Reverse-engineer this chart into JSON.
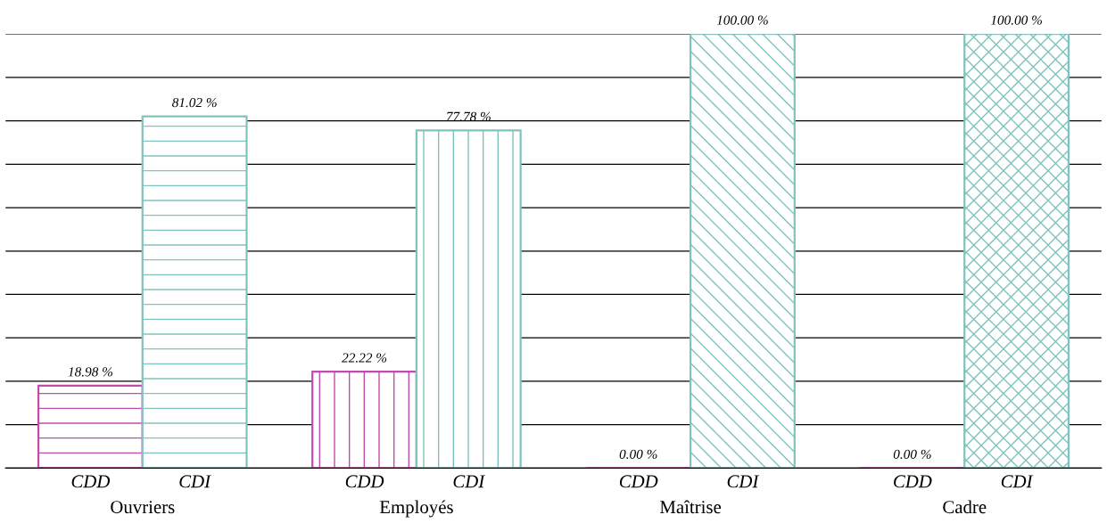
{
  "chart_data": {
    "type": "bar",
    "categories": [
      "Ouvriers",
      "Employés",
      "Maîtrise",
      "Cadre"
    ],
    "series": [
      {
        "name": "CDD",
        "color": "#c04cb0",
        "values": [
          18.98,
          22.22,
          0.0,
          0.0
        ],
        "value_labels": [
          "18.98 %",
          "22.22 %",
          "0.00 %",
          "0.00 %"
        ]
      },
      {
        "name": "CDI",
        "color": "#7fc4bc",
        "values": [
          81.02,
          77.78,
          100.0,
          100.0
        ],
        "value_labels": [
          "81.02 %",
          "77.78 %",
          "100.00 %",
          "100.00 %"
        ]
      }
    ],
    "ylim": [
      0,
      100
    ],
    "yticks": [
      {
        "value": 0,
        "label": null
      },
      {
        "value": 10,
        "label": null
      },
      {
        "value": 20,
        "label": null
      },
      {
        "value": 30,
        "label": null
      },
      {
        "value": 40,
        "label": null
      },
      {
        "value": 50,
        "label": null
      },
      {
        "value": 60,
        "label": null
      },
      {
        "value": 70,
        "label": null
      },
      {
        "value": 80,
        "label": null
      },
      {
        "value": 90,
        "label": null
      },
      {
        "value": 100,
        "label": null
      }
    ],
    "grid": "y",
    "tick_labels": "x"
  }
}
